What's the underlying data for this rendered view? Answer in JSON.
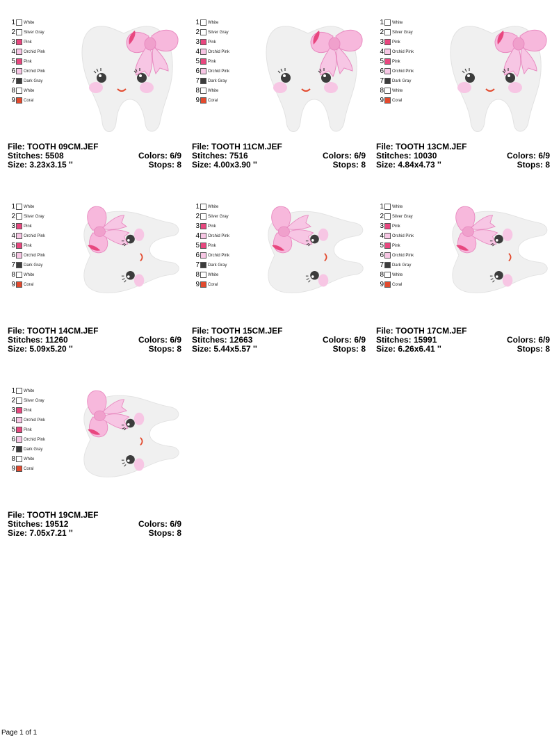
{
  "palette": [
    {
      "n": "1",
      "name": "White",
      "color": "#ffffff"
    },
    {
      "n": "2",
      "name": "Silver Gray",
      "color": "#ffffff"
    },
    {
      "n": "3",
      "name": "Pink",
      "color": "#e8477f"
    },
    {
      "n": "4",
      "name": "Orchid Pink",
      "color": "#f7c6e4"
    },
    {
      "n": "5",
      "name": "Pink",
      "color": "#e8477f"
    },
    {
      "n": "6",
      "name": "Orchid Pink",
      "color": "#f7c6e4"
    },
    {
      "n": "7",
      "name": "Dark Gray",
      "color": "#3c3c3c"
    },
    {
      "n": "8",
      "name": "White",
      "color": "#ffffff"
    },
    {
      "n": "9",
      "name": "Coral",
      "color": "#e34a2e"
    }
  ],
  "designs": [
    {
      "file": "File: TOOTH 09CM.JEF",
      "stitches": "Stitches: 5508",
      "colors": "Colors: 6/9",
      "size": "Size: 3.23x3.15 ''",
      "stops": "Stops: 8",
      "orientation": "upright"
    },
    {
      "file": "File: TOOTH 11CM.JEF",
      "stitches": "Stitches: 7516",
      "colors": "Colors: 6/9",
      "size": "Size: 4.00x3.90 ''",
      "stops": "Stops: 8",
      "orientation": "upright"
    },
    {
      "file": "File: TOOTH 13CM.JEF",
      "stitches": "Stitches: 10030",
      "colors": "Colors: 6/9",
      "size": "Size: 4.84x4.73 ''",
      "stops": "Stops: 8",
      "orientation": "upright"
    },
    {
      "file": "File: TOOTH 14CM.JEF",
      "stitches": "Stitches: 11260",
      "colors": "Colors: 6/9",
      "size": "Size: 5.09x5.20 ''",
      "stops": "Stops: 8",
      "orientation": "rotated"
    },
    {
      "file": "File: TOOTH 15CM.JEF",
      "stitches": "Stitches: 12663",
      "colors": "Colors: 6/9",
      "size": "Size: 5.44x5.57 ''",
      "stops": "Stops: 8",
      "orientation": "rotated"
    },
    {
      "file": "File: TOOTH 17CM.JEF",
      "stitches": "Stitches: 15991",
      "colors": "Colors: 6/9",
      "size": "Size: 6.26x6.41 ''",
      "stops": "Stops: 8",
      "orientation": "rotated"
    },
    {
      "file": "File: TOOTH 19CM.JEF",
      "stitches": "Stitches: 19512",
      "colors": "Colors: 6/9",
      "size": "Size: 7.05x7.21 ''",
      "stops": "Stops: 8",
      "orientation": "rotated"
    }
  ],
  "footer": "Page 1 of 1"
}
